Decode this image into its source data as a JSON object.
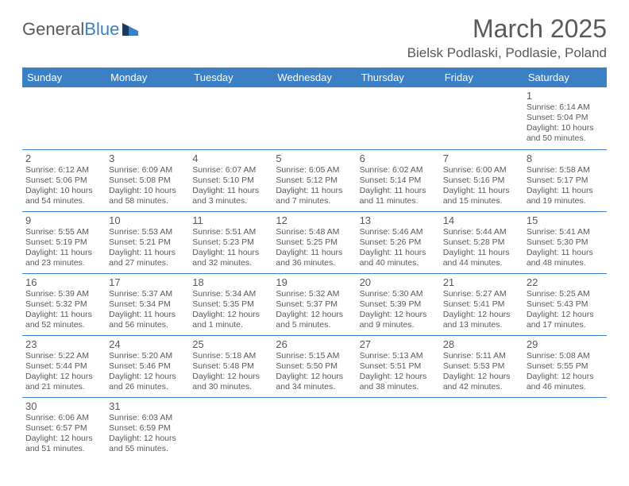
{
  "logo": {
    "part1": "General",
    "part2": "Blue"
  },
  "title": "March 2025",
  "subtitle": "Bielsk Podlaski, Podlasie, Poland",
  "header_bg": "#3b7fc4",
  "days_of_week": [
    "Sunday",
    "Monday",
    "Tuesday",
    "Wednesday",
    "Thursday",
    "Friday",
    "Saturday"
  ],
  "weeks": [
    [
      null,
      null,
      null,
      null,
      null,
      null,
      {
        "n": "1",
        "sr": "Sunrise: 6:14 AM",
        "ss": "Sunset: 5:04 PM",
        "d1": "Daylight: 10 hours",
        "d2": "and 50 minutes."
      }
    ],
    [
      {
        "n": "2",
        "sr": "Sunrise: 6:12 AM",
        "ss": "Sunset: 5:06 PM",
        "d1": "Daylight: 10 hours",
        "d2": "and 54 minutes."
      },
      {
        "n": "3",
        "sr": "Sunrise: 6:09 AM",
        "ss": "Sunset: 5:08 PM",
        "d1": "Daylight: 10 hours",
        "d2": "and 58 minutes."
      },
      {
        "n": "4",
        "sr": "Sunrise: 6:07 AM",
        "ss": "Sunset: 5:10 PM",
        "d1": "Daylight: 11 hours",
        "d2": "and 3 minutes."
      },
      {
        "n": "5",
        "sr": "Sunrise: 6:05 AM",
        "ss": "Sunset: 5:12 PM",
        "d1": "Daylight: 11 hours",
        "d2": "and 7 minutes."
      },
      {
        "n": "6",
        "sr": "Sunrise: 6:02 AM",
        "ss": "Sunset: 5:14 PM",
        "d1": "Daylight: 11 hours",
        "d2": "and 11 minutes."
      },
      {
        "n": "7",
        "sr": "Sunrise: 6:00 AM",
        "ss": "Sunset: 5:16 PM",
        "d1": "Daylight: 11 hours",
        "d2": "and 15 minutes."
      },
      {
        "n": "8",
        "sr": "Sunrise: 5:58 AM",
        "ss": "Sunset: 5:17 PM",
        "d1": "Daylight: 11 hours",
        "d2": "and 19 minutes."
      }
    ],
    [
      {
        "n": "9",
        "sr": "Sunrise: 5:55 AM",
        "ss": "Sunset: 5:19 PM",
        "d1": "Daylight: 11 hours",
        "d2": "and 23 minutes."
      },
      {
        "n": "10",
        "sr": "Sunrise: 5:53 AM",
        "ss": "Sunset: 5:21 PM",
        "d1": "Daylight: 11 hours",
        "d2": "and 27 minutes."
      },
      {
        "n": "11",
        "sr": "Sunrise: 5:51 AM",
        "ss": "Sunset: 5:23 PM",
        "d1": "Daylight: 11 hours",
        "d2": "and 32 minutes."
      },
      {
        "n": "12",
        "sr": "Sunrise: 5:48 AM",
        "ss": "Sunset: 5:25 PM",
        "d1": "Daylight: 11 hours",
        "d2": "and 36 minutes."
      },
      {
        "n": "13",
        "sr": "Sunrise: 5:46 AM",
        "ss": "Sunset: 5:26 PM",
        "d1": "Daylight: 11 hours",
        "d2": "and 40 minutes."
      },
      {
        "n": "14",
        "sr": "Sunrise: 5:44 AM",
        "ss": "Sunset: 5:28 PM",
        "d1": "Daylight: 11 hours",
        "d2": "and 44 minutes."
      },
      {
        "n": "15",
        "sr": "Sunrise: 5:41 AM",
        "ss": "Sunset: 5:30 PM",
        "d1": "Daylight: 11 hours",
        "d2": "and 48 minutes."
      }
    ],
    [
      {
        "n": "16",
        "sr": "Sunrise: 5:39 AM",
        "ss": "Sunset: 5:32 PM",
        "d1": "Daylight: 11 hours",
        "d2": "and 52 minutes."
      },
      {
        "n": "17",
        "sr": "Sunrise: 5:37 AM",
        "ss": "Sunset: 5:34 PM",
        "d1": "Daylight: 11 hours",
        "d2": "and 56 minutes."
      },
      {
        "n": "18",
        "sr": "Sunrise: 5:34 AM",
        "ss": "Sunset: 5:35 PM",
        "d1": "Daylight: 12 hours",
        "d2": "and 1 minute."
      },
      {
        "n": "19",
        "sr": "Sunrise: 5:32 AM",
        "ss": "Sunset: 5:37 PM",
        "d1": "Daylight: 12 hours",
        "d2": "and 5 minutes."
      },
      {
        "n": "20",
        "sr": "Sunrise: 5:30 AM",
        "ss": "Sunset: 5:39 PM",
        "d1": "Daylight: 12 hours",
        "d2": "and 9 minutes."
      },
      {
        "n": "21",
        "sr": "Sunrise: 5:27 AM",
        "ss": "Sunset: 5:41 PM",
        "d1": "Daylight: 12 hours",
        "d2": "and 13 minutes."
      },
      {
        "n": "22",
        "sr": "Sunrise: 5:25 AM",
        "ss": "Sunset: 5:43 PM",
        "d1": "Daylight: 12 hours",
        "d2": "and 17 minutes."
      }
    ],
    [
      {
        "n": "23",
        "sr": "Sunrise: 5:22 AM",
        "ss": "Sunset: 5:44 PM",
        "d1": "Daylight: 12 hours",
        "d2": "and 21 minutes."
      },
      {
        "n": "24",
        "sr": "Sunrise: 5:20 AM",
        "ss": "Sunset: 5:46 PM",
        "d1": "Daylight: 12 hours",
        "d2": "and 26 minutes."
      },
      {
        "n": "25",
        "sr": "Sunrise: 5:18 AM",
        "ss": "Sunset: 5:48 PM",
        "d1": "Daylight: 12 hours",
        "d2": "and 30 minutes."
      },
      {
        "n": "26",
        "sr": "Sunrise: 5:15 AM",
        "ss": "Sunset: 5:50 PM",
        "d1": "Daylight: 12 hours",
        "d2": "and 34 minutes."
      },
      {
        "n": "27",
        "sr": "Sunrise: 5:13 AM",
        "ss": "Sunset: 5:51 PM",
        "d1": "Daylight: 12 hours",
        "d2": "and 38 minutes."
      },
      {
        "n": "28",
        "sr": "Sunrise: 5:11 AM",
        "ss": "Sunset: 5:53 PM",
        "d1": "Daylight: 12 hours",
        "d2": "and 42 minutes."
      },
      {
        "n": "29",
        "sr": "Sunrise: 5:08 AM",
        "ss": "Sunset: 5:55 PM",
        "d1": "Daylight: 12 hours",
        "d2": "and 46 minutes."
      }
    ],
    [
      {
        "n": "30",
        "sr": "Sunrise: 6:06 AM",
        "ss": "Sunset: 6:57 PM",
        "d1": "Daylight: 12 hours",
        "d2": "and 51 minutes."
      },
      {
        "n": "31",
        "sr": "Sunrise: 6:03 AM",
        "ss": "Sunset: 6:59 PM",
        "d1": "Daylight: 12 hours",
        "d2": "and 55 minutes."
      },
      null,
      null,
      null,
      null,
      null
    ]
  ]
}
